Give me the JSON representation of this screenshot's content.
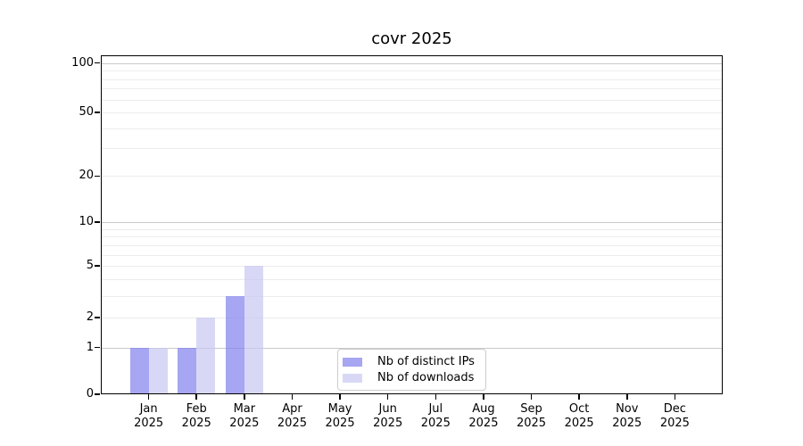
{
  "chart_data": {
    "type": "bar",
    "title": "covr 2025",
    "categories": [
      {
        "month": "Jan",
        "year": "2025"
      },
      {
        "month": "Feb",
        "year": "2025"
      },
      {
        "month": "Mar",
        "year": "2025"
      },
      {
        "month": "Apr",
        "year": "2025"
      },
      {
        "month": "May",
        "year": "2025"
      },
      {
        "month": "Jun",
        "year": "2025"
      },
      {
        "month": "Jul",
        "year": "2025"
      },
      {
        "month": "Aug",
        "year": "2025"
      },
      {
        "month": "Sep",
        "year": "2025"
      },
      {
        "month": "Oct",
        "year": "2025"
      },
      {
        "month": "Nov",
        "year": "2025"
      },
      {
        "month": "Dec",
        "year": "2025"
      }
    ],
    "series": [
      {
        "name": "Nb of distinct IPs",
        "color": "rgba(128,128,238,0.7)",
        "values": [
          1,
          1,
          3,
          0,
          0,
          0,
          0,
          0,
          0,
          0,
          0,
          0
        ]
      },
      {
        "name": "Nb of downloads",
        "color": "rgba(199,199,242,0.7)",
        "values": [
          1,
          2,
          5,
          0,
          0,
          0,
          0,
          0,
          0,
          0,
          0,
          0
        ]
      }
    ],
    "y_axis": {
      "scale": "log1p",
      "range": [
        0,
        112
      ],
      "ticks": [
        {
          "value": 0,
          "label": "0"
        },
        {
          "value": 1,
          "label": "1"
        },
        {
          "value": 2,
          "label": "2"
        },
        {
          "value": 5,
          "label": "5"
        },
        {
          "value": 10,
          "label": "10"
        },
        {
          "value": 20,
          "label": "20"
        },
        {
          "value": 50,
          "label": "50"
        },
        {
          "value": 100,
          "label": "100"
        }
      ],
      "major_gridlines": [
        1,
        10,
        100
      ],
      "minor_gridlines": [
        2,
        3,
        4,
        5,
        6,
        7,
        8,
        9,
        20,
        30,
        40,
        50,
        60,
        70,
        80,
        90
      ],
      "major_grid_color": "#c9c9c9",
      "minor_grid_color": "#ececec"
    },
    "legend": {
      "position": "lower-center-inside"
    },
    "grid": "on"
  },
  "colors": {
    "background": "#ffffff",
    "axis": "#000000",
    "distinct_ips_bar": "rgba(128,128,238,0.7)",
    "downloads_bar": "rgba(199,199,242,0.7)",
    "legend_border": "#cccccc"
  }
}
